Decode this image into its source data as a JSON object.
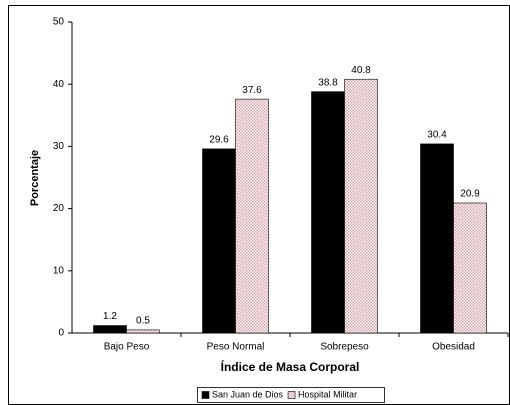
{
  "chart_data": {
    "type": "bar",
    "xlabel": "Índice de Masa Corporal",
    "ylabel": "Porcentaje",
    "categories": [
      "Bajo Peso",
      "Peso Normal",
      "Sobrepeso",
      "Obesidad"
    ],
    "series": [
      {
        "name": "San Juan de Dios",
        "color": "#000000",
        "values": [
          1.2,
          29.6,
          38.8,
          30.4
        ]
      },
      {
        "name": "Hospital Militar",
        "color": "#d9a0a8",
        "values": [
          0.5,
          37.6,
          40.8,
          20.9
        ]
      }
    ],
    "ylim": [
      0,
      50
    ],
    "yticks": [
      0,
      10,
      20,
      30,
      40,
      50
    ],
    "grid": false,
    "legend": "bottom"
  }
}
